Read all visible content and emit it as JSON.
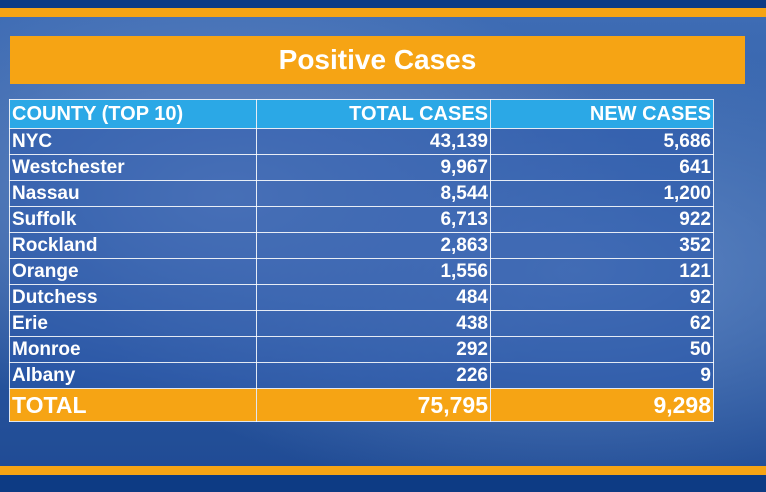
{
  "chart_data": {
    "type": "table",
    "title": "Positive Cases",
    "columns": [
      "COUNTY (TOP 10)",
      "TOTAL CASES",
      "NEW CASES"
    ],
    "rows": [
      {
        "county": "NYC",
        "total": "43,139",
        "new": "5,686"
      },
      {
        "county": "Westchester",
        "total": "9,967",
        "new": "641"
      },
      {
        "county": "Nassau",
        "total": "8,544",
        "new": "1,200"
      },
      {
        "county": "Suffolk",
        "total": "6,713",
        "new": "922"
      },
      {
        "county": "Rockland",
        "total": "2,863",
        "new": "352"
      },
      {
        "county": "Orange",
        "total": "1,556",
        "new": "121"
      },
      {
        "county": "Dutchess",
        "total": "484",
        "new": "92"
      },
      {
        "county": "Erie",
        "total": "438",
        "new": "62"
      },
      {
        "county": "Monroe",
        "total": "292",
        "new": "50"
      },
      {
        "county": "Albany",
        "total": "226",
        "new": "9"
      }
    ],
    "total": {
      "label": "TOTAL",
      "total": "75,795",
      "new": "9,298"
    }
  },
  "colors": {
    "accent_orange": "#f6a414",
    "header_blue": "#2ba8e6",
    "frame_blue": "#0d3b84"
  }
}
